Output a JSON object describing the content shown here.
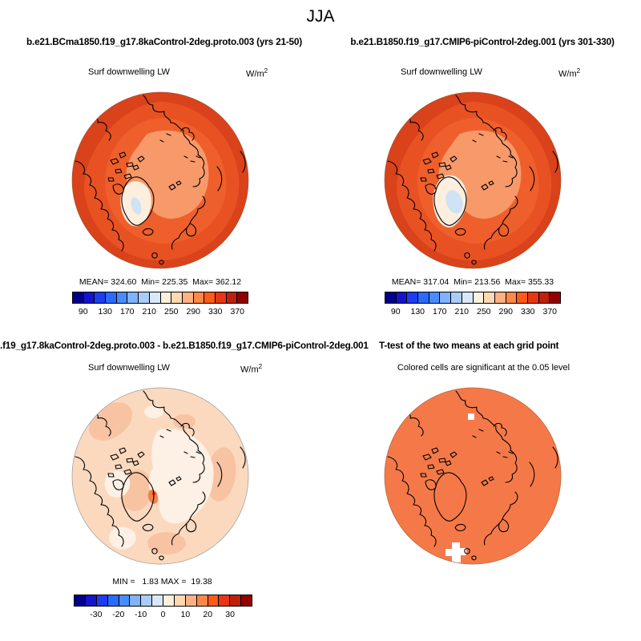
{
  "figure_title": "JJA",
  "runs": {
    "left": "b.e21.BCma1850.f19_g17.8kaControl-2deg.proto.003 (yrs 21-50)",
    "right": "b.e21.B1850.f19_g17.CMIP6-piControl-2deg.001 (yrs 301-330)"
  },
  "diff_row": {
    "left_title_clipped": ".f19_g17.8kaControl-2deg.proto.003 - b.e21.B1850.f19_g17.CMIP6-piControl-2deg.001",
    "right_title": "T-test of the two means at each grid point"
  },
  "panels": {
    "top_left": {
      "field": "Surf downwelling LW",
      "units_base": "W/m",
      "units_exp": "2",
      "stats": "MEAN= 324.60  Min= 225.35  Max= 362.12"
    },
    "top_right": {
      "field": "Surf downwelling LW",
      "units_base": "W/m",
      "units_exp": "2",
      "stats": "MEAN= 317.04  Min= 213.56  Max= 355.33"
    },
    "bottom_left": {
      "field": "Surf downwelling LW",
      "units_base": "W/m",
      "units_exp": "2",
      "stats": "MIN =   1.83 MAX =  19.38"
    },
    "bottom_right": {
      "note": "Colored cells are significant at the 0.05 level"
    }
  },
  "colorbar": {
    "colors": [
      "#00008f",
      "#1414cd",
      "#1e3cf0",
      "#2a6aff",
      "#4a8cff",
      "#7fb2ff",
      "#aaccf8",
      "#d8e8fb",
      "#fdf0dc",
      "#fed9b2",
      "#ffb183",
      "#ff8747",
      "#ff5a19",
      "#e83514",
      "#c01f0a",
      "#920000"
    ],
    "abs_ticks": [
      90,
      130,
      170,
      210,
      250,
      290,
      330,
      370
    ],
    "abs_range": [
      70,
      390
    ],
    "diff_ticks": [
      -30,
      -20,
      -10,
      0,
      10,
      20,
      30
    ],
    "diff_range": [
      -40,
      40
    ]
  },
  "chart_data": [
    {
      "type": "heatmap",
      "subtype": "north-polar-contour-map",
      "panel": "top_left",
      "season": "JJA",
      "title": "b.e21.BCma1850.f19_g17.8kaControl-2deg.proto.003 (yrs 21-50)",
      "variable": "Surf downwelling LW",
      "units": "W/m^2",
      "mean": 324.6,
      "min": 225.35,
      "max": 362.12,
      "contour_range": [
        70,
        390
      ],
      "contour_step": 20,
      "colorbar_ticks": [
        90,
        130,
        170,
        210,
        250,
        290,
        330,
        370
      ],
      "legend_position": "below",
      "dominant_values": "ocean interior ~270-290, midlatitude rim ~310-350, Greenland interior ~190-230 (blue/cream minimum)"
    },
    {
      "type": "heatmap",
      "subtype": "north-polar-contour-map",
      "panel": "top_right",
      "season": "JJA",
      "title": "b.e21.B1850.f19_g17.CMIP6-piControl-2deg.001 (yrs 301-330)",
      "variable": "Surf downwelling LW",
      "units": "W/m^2",
      "mean": 317.04,
      "min": 213.56,
      "max": 355.33,
      "contour_range": [
        70,
        390
      ],
      "contour_step": 20,
      "colorbar_ticks": [
        90,
        130,
        170,
        210,
        250,
        290,
        330,
        370
      ],
      "legend_position": "below",
      "dominant_values": "same pattern as top_left with larger Greenland blue/cream minimum"
    },
    {
      "type": "heatmap",
      "subtype": "north-polar-contour-map",
      "panel": "bottom_left",
      "title": ".f19_g17.8kaControl-2deg.proto.003 - b.e21.B1850.f19_g17.CMIP6-piControl-2deg.001",
      "variable": "Surf downwelling LW difference",
      "units": "W/m^2",
      "min": 1.83,
      "max": 19.38,
      "contour_range": [
        -40,
        40
      ],
      "contour_step": 5,
      "colorbar_ticks": [
        -30,
        -20,
        -10,
        0,
        10,
        20,
        30
      ],
      "legend_position": "below",
      "dominant_values": "mostly +0 to +10 (pale peach/cream), local maximum ~+15-20 on east Greenland"
    },
    {
      "type": "heatmap",
      "subtype": "north-polar-significance-map",
      "panel": "bottom_right",
      "title": "T-test of the two means at each grid point",
      "note": "Colored cells are significant at the 0.05 level",
      "significance_level": 0.05,
      "dominant_values": "nearly all grid cells significant (solid orange); small non-significant white patches near Iceland/UK and north of Siberia"
    }
  ]
}
